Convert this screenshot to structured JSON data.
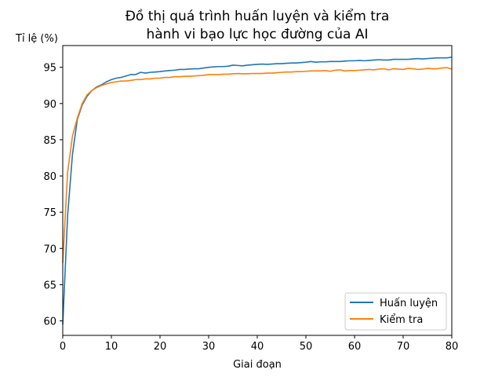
{
  "chart_data": {
    "type": "line",
    "title_line1": "Đồ thị quá trình huấn luyện và kiểm tra",
    "title_line2": "hành vi bạo lực học đường của AI",
    "xlabel": "Giai đoạn",
    "ylabel": "Tỉ lệ (%)",
    "xlim": [
      0,
      80
    ],
    "ylim": [
      58,
      98
    ],
    "xticks": [
      "0",
      "10",
      "20",
      "30",
      "40",
      "50",
      "60",
      "70",
      "80"
    ],
    "yticks": [
      "60",
      "65",
      "70",
      "75",
      "80",
      "85",
      "90",
      "95"
    ],
    "grid": false,
    "legend_position": "lower-right",
    "x": [
      0,
      1,
      2,
      3,
      4,
      5,
      6,
      7,
      8,
      9,
      10,
      11,
      12,
      13,
      14,
      15,
      16,
      17,
      18,
      19,
      20,
      21,
      22,
      23,
      24,
      25,
      26,
      27,
      28,
      29,
      30,
      31,
      32,
      33,
      34,
      35,
      36,
      37,
      38,
      39,
      40,
      41,
      42,
      43,
      44,
      45,
      46,
      47,
      48,
      49,
      50,
      51,
      52,
      53,
      54,
      55,
      56,
      57,
      58,
      59,
      60,
      61,
      62,
      63,
      64,
      65,
      66,
      67,
      68,
      69,
      70,
      71,
      72,
      73,
      74,
      75,
      76,
      77,
      78,
      79,
      80
    ],
    "series": [
      {
        "name": "Huấn luyện",
        "color": "#1f77b4",
        "values": [
          59.5,
          74.5,
          83.0,
          87.8,
          89.8,
          91.0,
          91.8,
          92.3,
          92.6,
          93.0,
          93.3,
          93.5,
          93.6,
          93.8,
          94.0,
          94.0,
          94.3,
          94.2,
          94.3,
          94.35,
          94.4,
          94.5,
          94.55,
          94.6,
          94.7,
          94.7,
          94.75,
          94.8,
          94.8,
          94.9,
          95.0,
          95.05,
          95.1,
          95.1,
          95.15,
          95.3,
          95.25,
          95.2,
          95.3,
          95.35,
          95.4,
          95.45,
          95.4,
          95.45,
          95.5,
          95.5,
          95.55,
          95.6,
          95.6,
          95.65,
          95.7,
          95.8,
          95.7,
          95.75,
          95.75,
          95.8,
          95.8,
          95.8,
          95.85,
          95.9,
          95.9,
          95.95,
          95.9,
          95.95,
          96.0,
          96.05,
          96.0,
          96.0,
          96.1,
          96.1,
          96.1,
          96.1,
          96.15,
          96.2,
          96.15,
          96.2,
          96.25,
          96.3,
          96.3,
          96.3,
          96.4
        ]
      },
      {
        "name": "Kiểm tra",
        "color": "#ff7f0e",
        "values": [
          68.0,
          80.5,
          85.5,
          88.0,
          90.0,
          91.2,
          91.8,
          92.2,
          92.5,
          92.7,
          92.9,
          93.0,
          93.1,
          93.1,
          93.2,
          93.3,
          93.3,
          93.4,
          93.4,
          93.5,
          93.5,
          93.6,
          93.6,
          93.7,
          93.7,
          93.75,
          93.75,
          93.8,
          93.85,
          93.9,
          94.0,
          94.0,
          94.0,
          94.05,
          94.05,
          94.1,
          94.15,
          94.1,
          94.1,
          94.15,
          94.15,
          94.15,
          94.2,
          94.2,
          94.25,
          94.3,
          94.35,
          94.35,
          94.4,
          94.4,
          94.45,
          94.5,
          94.5,
          94.5,
          94.55,
          94.45,
          94.6,
          94.65,
          94.5,
          94.55,
          94.55,
          94.6,
          94.65,
          94.7,
          94.65,
          94.75,
          94.8,
          94.65,
          94.8,
          94.75,
          94.7,
          94.85,
          94.8,
          94.7,
          94.75,
          94.85,
          94.8,
          94.8,
          94.9,
          94.95,
          94.75
        ]
      }
    ]
  }
}
